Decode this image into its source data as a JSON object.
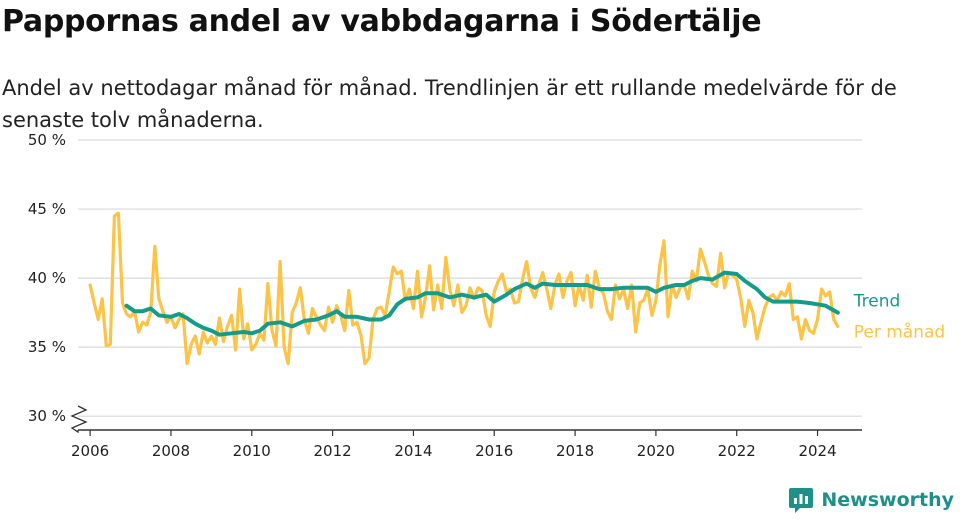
{
  "title": "Pappornas andel av vabbdagarna i Södertälje",
  "subtitle": "Andel av nettodagar månad för månad. Trendlinjen är ett rullande medelvärde för de senaste tolv månaderna.",
  "brand": {
    "name": "Newsworthy",
    "icon": "newsworthy-logo-icon"
  },
  "colors": {
    "monthly": "#fcc347",
    "trend": "#149b8a",
    "grid": "#d9d9d9",
    "axis": "#333333"
  },
  "chart_data": {
    "type": "line",
    "title": "Pappornas andel av vabbdagarna i Södertälje",
    "xlabel": "",
    "ylabel": "",
    "x_range": [
      2005.7,
      2025.1
    ],
    "y_range": [
      29,
      50
    ],
    "y_ticks": [
      30,
      35,
      40,
      45,
      50
    ],
    "y_tick_labels": [
      "30 %",
      "35 %",
      "40 %",
      "45 %",
      "50 %"
    ],
    "x_ticks": [
      2006,
      2008,
      2010,
      2012,
      2014,
      2016,
      2018,
      2020,
      2022,
      2024
    ],
    "x_tick_labels": [
      "2006",
      "2008",
      "2010",
      "2012",
      "2014",
      "2016",
      "2018",
      "2020",
      "2022",
      "2024"
    ],
    "y_axis_break": true,
    "grid": true,
    "legend": "inline labels at line ends (right)",
    "series": [
      {
        "name": "Per månad",
        "color": "#fcc347",
        "points": [
          [
            2006.0,
            39.5
          ],
          [
            2006.1,
            38.2
          ],
          [
            2006.2,
            37.0
          ],
          [
            2006.3,
            38.5
          ],
          [
            2006.4,
            35.1
          ],
          [
            2006.5,
            35.2
          ],
          [
            2006.6,
            44.5
          ],
          [
            2006.7,
            44.7
          ],
          [
            2006.8,
            38.2
          ],
          [
            2006.9,
            37.4
          ],
          [
            2007.0,
            37.2
          ],
          [
            2007.1,
            37.6
          ],
          [
            2007.2,
            36.1
          ],
          [
            2007.3,
            36.8
          ],
          [
            2007.4,
            36.6
          ],
          [
            2007.5,
            37.5
          ],
          [
            2007.6,
            42.3
          ],
          [
            2007.7,
            38.5
          ],
          [
            2007.8,
            37.6
          ],
          [
            2007.9,
            36.8
          ],
          [
            2008.0,
            37.2
          ],
          [
            2008.1,
            36.4
          ],
          [
            2008.2,
            37.0
          ],
          [
            2008.3,
            37.4
          ],
          [
            2008.4,
            33.8
          ],
          [
            2008.5,
            35.2
          ],
          [
            2008.6,
            35.8
          ],
          [
            2008.7,
            34.5
          ],
          [
            2008.8,
            36.1
          ],
          [
            2008.9,
            35.3
          ],
          [
            2009.0,
            35.8
          ],
          [
            2009.1,
            35.2
          ],
          [
            2009.2,
            37.1
          ],
          [
            2009.3,
            35.4
          ],
          [
            2009.4,
            36.5
          ],
          [
            2009.5,
            37.3
          ],
          [
            2009.6,
            34.8
          ],
          [
            2009.7,
            39.2
          ],
          [
            2009.8,
            35.6
          ],
          [
            2009.9,
            36.7
          ],
          [
            2010.0,
            34.8
          ],
          [
            2010.1,
            35.2
          ],
          [
            2010.2,
            36.0
          ],
          [
            2010.3,
            35.5
          ],
          [
            2010.4,
            39.6
          ],
          [
            2010.5,
            36.2
          ],
          [
            2010.6,
            35.1
          ],
          [
            2010.7,
            41.2
          ],
          [
            2010.8,
            35.0
          ],
          [
            2010.9,
            33.8
          ],
          [
            2011.0,
            37.5
          ],
          [
            2011.1,
            38.2
          ],
          [
            2011.2,
            39.3
          ],
          [
            2011.3,
            37.0
          ],
          [
            2011.4,
            36.0
          ],
          [
            2011.5,
            37.8
          ],
          [
            2011.6,
            37.2
          ],
          [
            2011.7,
            36.6
          ],
          [
            2011.8,
            36.2
          ],
          [
            2011.9,
            37.9
          ],
          [
            2012.0,
            36.8
          ],
          [
            2012.1,
            38.0
          ],
          [
            2012.2,
            37.3
          ],
          [
            2012.3,
            36.2
          ],
          [
            2012.4,
            39.1
          ],
          [
            2012.5,
            36.6
          ],
          [
            2012.6,
            36.8
          ],
          [
            2012.7,
            35.9
          ],
          [
            2012.8,
            33.8
          ],
          [
            2012.9,
            34.2
          ],
          [
            2013.0,
            37.0
          ],
          [
            2013.1,
            37.8
          ],
          [
            2013.2,
            37.9
          ],
          [
            2013.3,
            37.3
          ],
          [
            2013.4,
            39.0
          ],
          [
            2013.5,
            40.8
          ],
          [
            2013.6,
            40.3
          ],
          [
            2013.7,
            40.5
          ],
          [
            2013.8,
            38.4
          ],
          [
            2013.9,
            39.2
          ],
          [
            2014.0,
            37.8
          ],
          [
            2014.1,
            40.5
          ],
          [
            2014.2,
            37.2
          ],
          [
            2014.3,
            38.6
          ],
          [
            2014.4,
            40.9
          ],
          [
            2014.5,
            37.7
          ],
          [
            2014.6,
            39.5
          ],
          [
            2014.7,
            37.8
          ],
          [
            2014.8,
            41.5
          ],
          [
            2014.9,
            39.2
          ],
          [
            2015.0,
            38.0
          ],
          [
            2015.1,
            39.5
          ],
          [
            2015.2,
            37.5
          ],
          [
            2015.3,
            38.0
          ],
          [
            2015.4,
            39.3
          ],
          [
            2015.5,
            38.5
          ],
          [
            2015.6,
            39.3
          ],
          [
            2015.7,
            39.1
          ],
          [
            2015.8,
            37.3
          ],
          [
            2015.9,
            36.5
          ],
          [
            2016.0,
            39.0
          ],
          [
            2016.1,
            39.8
          ],
          [
            2016.2,
            40.3
          ],
          [
            2016.3,
            39.0
          ],
          [
            2016.4,
            39.2
          ],
          [
            2016.5,
            38.2
          ],
          [
            2016.6,
            38.3
          ],
          [
            2016.7,
            39.9
          ],
          [
            2016.8,
            41.2
          ],
          [
            2016.9,
            39.3
          ],
          [
            2017.0,
            38.6
          ],
          [
            2017.1,
            39.5
          ],
          [
            2017.2,
            40.4
          ],
          [
            2017.3,
            39.2
          ],
          [
            2017.4,
            37.8
          ],
          [
            2017.5,
            39.5
          ],
          [
            2017.6,
            40.3
          ],
          [
            2017.7,
            38.6
          ],
          [
            2017.8,
            39.8
          ],
          [
            2017.9,
            40.4
          ],
          [
            2018.0,
            38.0
          ],
          [
            2018.1,
            39.5
          ],
          [
            2018.2,
            38.4
          ],
          [
            2018.3,
            40.2
          ],
          [
            2018.4,
            37.9
          ],
          [
            2018.5,
            40.5
          ],
          [
            2018.6,
            39.3
          ],
          [
            2018.7,
            38.9
          ],
          [
            2018.8,
            37.6
          ],
          [
            2018.9,
            37.0
          ],
          [
            2019.0,
            39.5
          ],
          [
            2019.1,
            38.5
          ],
          [
            2019.2,
            39.2
          ],
          [
            2019.3,
            37.8
          ],
          [
            2019.4,
            39.5
          ],
          [
            2019.5,
            36.1
          ],
          [
            2019.6,
            38.2
          ],
          [
            2019.7,
            38.4
          ],
          [
            2019.8,
            39.2
          ],
          [
            2019.9,
            37.3
          ],
          [
            2020.0,
            38.4
          ],
          [
            2020.1,
            41.0
          ],
          [
            2020.2,
            42.7
          ],
          [
            2020.3,
            37.2
          ],
          [
            2020.4,
            39.5
          ],
          [
            2020.5,
            38.6
          ],
          [
            2020.6,
            39.3
          ],
          [
            2020.7,
            39.5
          ],
          [
            2020.8,
            38.5
          ],
          [
            2020.9,
            40.5
          ],
          [
            2021.0,
            39.8
          ],
          [
            2021.1,
            42.1
          ],
          [
            2021.2,
            41.2
          ],
          [
            2021.3,
            40.2
          ],
          [
            2021.4,
            39.6
          ],
          [
            2021.5,
            39.4
          ],
          [
            2021.6,
            41.8
          ],
          [
            2021.7,
            39.3
          ],
          [
            2021.8,
            40.4
          ],
          [
            2021.9,
            40.2
          ],
          [
            2022.0,
            39.9
          ],
          [
            2022.1,
            38.5
          ],
          [
            2022.2,
            36.5
          ],
          [
            2022.3,
            38.4
          ],
          [
            2022.4,
            37.5
          ],
          [
            2022.5,
            35.6
          ],
          [
            2022.6,
            36.8
          ],
          [
            2022.7,
            37.9
          ],
          [
            2022.8,
            38.6
          ],
          [
            2022.9,
            38.8
          ],
          [
            2023.0,
            38.4
          ],
          [
            2023.1,
            39.0
          ],
          [
            2023.2,
            38.7
          ],
          [
            2023.3,
            39.6
          ],
          [
            2023.4,
            37.0
          ],
          [
            2023.5,
            37.2
          ],
          [
            2023.6,
            35.6
          ],
          [
            2023.7,
            37.0
          ],
          [
            2023.8,
            36.2
          ],
          [
            2023.9,
            36.0
          ],
          [
            2024.0,
            37.0
          ],
          [
            2024.1,
            39.2
          ],
          [
            2024.2,
            38.7
          ],
          [
            2024.3,
            39.0
          ],
          [
            2024.4,
            37.0
          ],
          [
            2024.5,
            36.5
          ]
        ]
      },
      {
        "name": "Trend",
        "color": "#149b8a",
        "points": [
          [
            2006.9,
            38.0
          ],
          [
            2007.1,
            37.6
          ],
          [
            2007.3,
            37.6
          ],
          [
            2007.5,
            37.8
          ],
          [
            2007.7,
            37.3
          ],
          [
            2008.0,
            37.2
          ],
          [
            2008.2,
            37.4
          ],
          [
            2008.4,
            37.1
          ],
          [
            2008.6,
            36.7
          ],
          [
            2008.8,
            36.4
          ],
          [
            2009.0,
            36.2
          ],
          [
            2009.2,
            35.9
          ],
          [
            2009.5,
            36.0
          ],
          [
            2009.8,
            36.1
          ],
          [
            2010.0,
            36.0
          ],
          [
            2010.2,
            36.2
          ],
          [
            2010.4,
            36.7
          ],
          [
            2010.7,
            36.8
          ],
          [
            2011.0,
            36.5
          ],
          [
            2011.3,
            36.9
          ],
          [
            2011.6,
            37.0
          ],
          [
            2011.9,
            37.3
          ],
          [
            2012.1,
            37.6
          ],
          [
            2012.3,
            37.2
          ],
          [
            2012.6,
            37.2
          ],
          [
            2012.9,
            37.0
          ],
          [
            2013.2,
            37.0
          ],
          [
            2013.4,
            37.3
          ],
          [
            2013.6,
            38.1
          ],
          [
            2013.8,
            38.5
          ],
          [
            2014.1,
            38.6
          ],
          [
            2014.3,
            38.9
          ],
          [
            2014.6,
            38.9
          ],
          [
            2014.9,
            38.6
          ],
          [
            2015.2,
            38.8
          ],
          [
            2015.5,
            38.6
          ],
          [
            2015.8,
            38.8
          ],
          [
            2016.0,
            38.3
          ],
          [
            2016.3,
            38.8
          ],
          [
            2016.5,
            39.2
          ],
          [
            2016.8,
            39.6
          ],
          [
            2017.0,
            39.3
          ],
          [
            2017.2,
            39.6
          ],
          [
            2017.5,
            39.5
          ],
          [
            2017.8,
            39.5
          ],
          [
            2018.0,
            39.5
          ],
          [
            2018.3,
            39.5
          ],
          [
            2018.6,
            39.2
          ],
          [
            2018.9,
            39.2
          ],
          [
            2019.2,
            39.3
          ],
          [
            2019.5,
            39.3
          ],
          [
            2019.8,
            39.3
          ],
          [
            2020.0,
            39.0
          ],
          [
            2020.2,
            39.3
          ],
          [
            2020.5,
            39.5
          ],
          [
            2020.7,
            39.5
          ],
          [
            2020.9,
            39.8
          ],
          [
            2021.1,
            40.0
          ],
          [
            2021.4,
            39.9
          ],
          [
            2021.7,
            40.4
          ],
          [
            2022.0,
            40.3
          ],
          [
            2022.2,
            39.8
          ],
          [
            2022.5,
            39.2
          ],
          [
            2022.7,
            38.6
          ],
          [
            2022.9,
            38.3
          ],
          [
            2023.2,
            38.3
          ],
          [
            2023.5,
            38.3
          ],
          [
            2023.8,
            38.2
          ],
          [
            2024.0,
            38.1
          ],
          [
            2024.2,
            38.0
          ],
          [
            2024.5,
            37.5
          ]
        ]
      }
    ]
  }
}
